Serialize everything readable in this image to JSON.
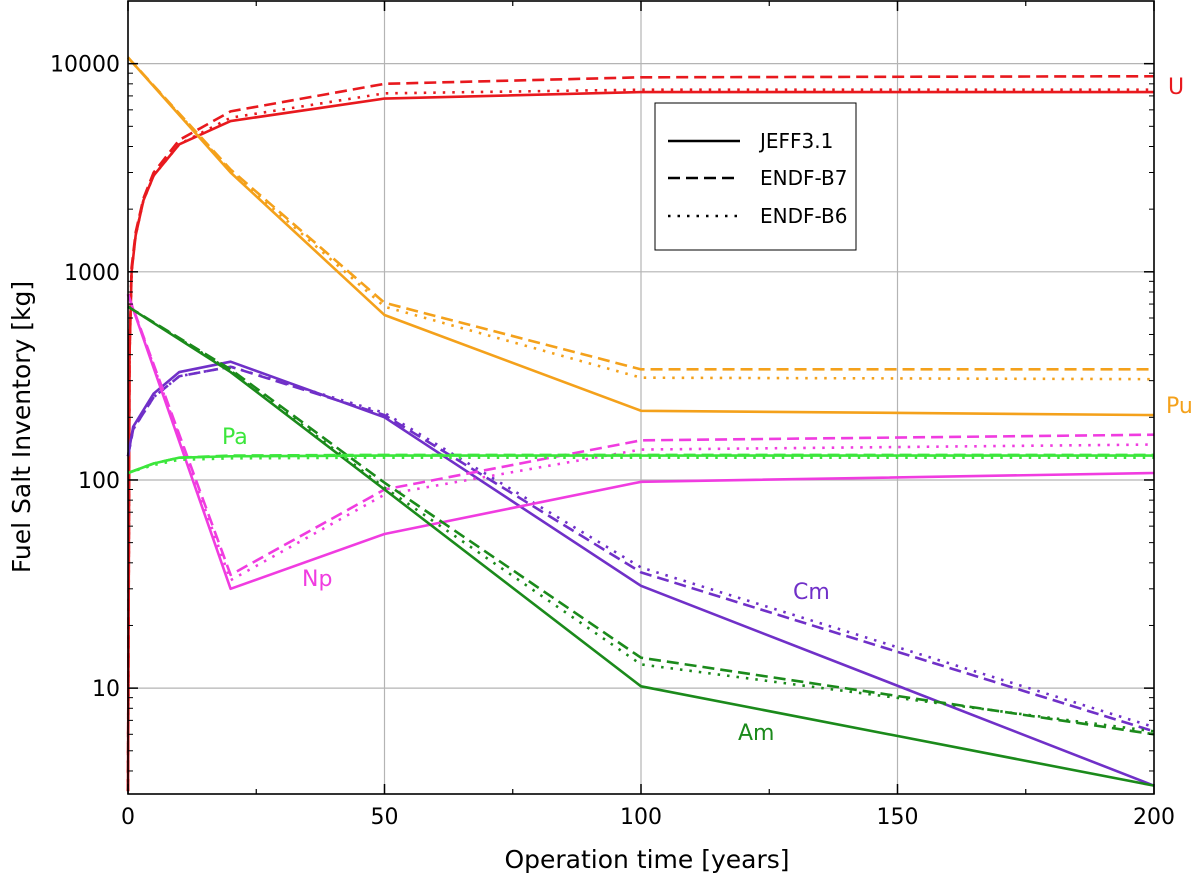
{
  "chart_data": {
    "type": "line",
    "xlabel": "Operation time [years]",
    "ylabel": "Fuel Salt Inventory [kg]",
    "x_ticks": [
      0,
      50,
      100,
      150,
      200
    ],
    "y_ticks": [
      10,
      100,
      1000,
      10000
    ],
    "xlim": [
      0,
      200
    ],
    "ylim_log": [
      3.1,
      20000
    ],
    "yscale": "log",
    "grid": true,
    "legend_position": "upper-center-right",
    "libraries": [
      {
        "name": "JEFF3.1",
        "dash": "solid"
      },
      {
        "name": "ENDF-B7",
        "dash": "dashed"
      },
      {
        "name": "ENDF-B6",
        "dash": "dotted"
      }
    ],
    "series": [
      {
        "element": "U",
        "library": "JEFF3.1",
        "color": "#e8191e",
        "points": [
          [
            0,
            3.2
          ],
          [
            0.3,
            400
          ],
          [
            0.7,
            1000
          ],
          [
            1.5,
            1500
          ],
          [
            3,
            2200
          ],
          [
            5,
            2900
          ],
          [
            10,
            4100
          ],
          [
            20,
            5300
          ],
          [
            50,
            6800
          ],
          [
            100,
            7300
          ],
          [
            200,
            7300
          ]
        ]
      },
      {
        "element": "U",
        "library": "ENDF-B7",
        "color": "#e8191e",
        "points": [
          [
            0,
            3.2
          ],
          [
            0.3,
            420
          ],
          [
            0.7,
            1050
          ],
          [
            1.5,
            1550
          ],
          [
            3,
            2250
          ],
          [
            5,
            3000
          ],
          [
            10,
            4300
          ],
          [
            20,
            5900
          ],
          [
            50,
            8000
          ],
          [
            100,
            8600
          ],
          [
            200,
            8700
          ]
        ]
      },
      {
        "element": "U",
        "library": "ENDF-B6",
        "color": "#e8191e",
        "points": [
          [
            0,
            3.2
          ],
          [
            0.3,
            400
          ],
          [
            0.7,
            1000
          ],
          [
            1.5,
            1500
          ],
          [
            3,
            2200
          ],
          [
            5,
            2900
          ],
          [
            10,
            4100
          ],
          [
            20,
            5500
          ],
          [
            50,
            7200
          ],
          [
            100,
            7500
          ],
          [
            200,
            7500
          ]
        ]
      },
      {
        "element": "Pu",
        "library": "JEFF3.1",
        "color": "#f4a11b",
        "points": [
          [
            0,
            10700
          ],
          [
            20,
            3000
          ],
          [
            50,
            620
          ],
          [
            100,
            215
          ],
          [
            200,
            205
          ]
        ]
      },
      {
        "element": "Pu",
        "library": "ENDF-B7",
        "color": "#f4a11b",
        "points": [
          [
            0,
            10700
          ],
          [
            20,
            3100
          ],
          [
            50,
            710
          ],
          [
            100,
            340
          ],
          [
            200,
            340
          ]
        ]
      },
      {
        "element": "Pu",
        "library": "ENDF-B6",
        "color": "#f4a11b",
        "points": [
          [
            0,
            10700
          ],
          [
            20,
            3050
          ],
          [
            50,
            680
          ],
          [
            100,
            310
          ],
          [
            200,
            305
          ]
        ]
      },
      {
        "element": "Cm",
        "library": "JEFF3.1",
        "color": "#7030c8",
        "points": [
          [
            0,
            130
          ],
          [
            1,
            180
          ],
          [
            5,
            260
          ],
          [
            10,
            330
          ],
          [
            20,
            370
          ],
          [
            50,
            200
          ],
          [
            100,
            31
          ],
          [
            200,
            3.4
          ]
        ]
      },
      {
        "element": "Cm",
        "library": "ENDF-B7",
        "color": "#7030c8",
        "points": [
          [
            0,
            130
          ],
          [
            1,
            175
          ],
          [
            5,
            250
          ],
          [
            10,
            315
          ],
          [
            20,
            350
          ],
          [
            50,
            205
          ],
          [
            100,
            36
          ],
          [
            200,
            6.2
          ]
        ]
      },
      {
        "element": "Cm",
        "library": "ENDF-B6",
        "color": "#7030c8",
        "points": [
          [
            0,
            130
          ],
          [
            1,
            175
          ],
          [
            5,
            250
          ],
          [
            10,
            315
          ],
          [
            20,
            350
          ],
          [
            50,
            210
          ],
          [
            100,
            38
          ],
          [
            200,
            6.5
          ]
        ]
      },
      {
        "element": "Np",
        "library": "JEFF3.1",
        "color": "#f03ce0",
        "points": [
          [
            0,
            780
          ],
          [
            20,
            30
          ],
          [
            50,
            55
          ],
          [
            100,
            98
          ],
          [
            200,
            108
          ]
        ]
      },
      {
        "element": "Np",
        "library": "ENDF-B7",
        "color": "#f03ce0",
        "points": [
          [
            0,
            780
          ],
          [
            20,
            35
          ],
          [
            50,
            90
          ],
          [
            100,
            155
          ],
          [
            200,
            165
          ]
        ]
      },
      {
        "element": "Np",
        "library": "ENDF-B6",
        "color": "#f03ce0",
        "points": [
          [
            0,
            780
          ],
          [
            20,
            33
          ],
          [
            50,
            85
          ],
          [
            100,
            140
          ],
          [
            200,
            148
          ]
        ]
      },
      {
        "element": "Am",
        "library": "JEFF3.1",
        "color": "#1b8a1b",
        "points": [
          [
            0,
            680
          ],
          [
            20,
            330
          ],
          [
            50,
            90
          ],
          [
            100,
            10.2
          ],
          [
            200,
            3.4
          ]
        ]
      },
      {
        "element": "Am",
        "library": "ENDF-B7",
        "color": "#1b8a1b",
        "points": [
          [
            0,
            680
          ],
          [
            20,
            340
          ],
          [
            50,
            97
          ],
          [
            100,
            14
          ],
          [
            200,
            6
          ]
        ]
      },
      {
        "element": "Am",
        "library": "ENDF-B6",
        "color": "#1b8a1b",
        "points": [
          [
            0,
            680
          ],
          [
            20,
            335
          ],
          [
            50,
            92
          ],
          [
            100,
            13
          ],
          [
            200,
            6.2
          ]
        ]
      },
      {
        "element": "Pa",
        "library": "JEFF3.1",
        "color": "#3ce63c",
        "points": [
          [
            0,
            108
          ],
          [
            5,
            120
          ],
          [
            10,
            128
          ],
          [
            20,
            130
          ],
          [
            50,
            131
          ],
          [
            100,
            131
          ],
          [
            200,
            131
          ]
        ]
      },
      {
        "element": "Pa",
        "library": "ENDF-B7",
        "color": "#3ce63c",
        "points": [
          [
            0,
            108
          ],
          [
            5,
            120
          ],
          [
            10,
            128
          ],
          [
            20,
            131
          ],
          [
            50,
            132
          ],
          [
            100,
            132
          ],
          [
            200,
            132
          ]
        ]
      },
      {
        "element": "Pa",
        "library": "ENDF-B6",
        "color": "#3ce63c",
        "points": [
          [
            0,
            108
          ],
          [
            5,
            118
          ],
          [
            10,
            125
          ],
          [
            20,
            127
          ],
          [
            50,
            128
          ],
          [
            100,
            128
          ],
          [
            200,
            128
          ]
        ]
      }
    ],
    "annotations": [
      {
        "text": "U",
        "color": "#e8191e"
      },
      {
        "text": "Pu",
        "color": "#f4a11b"
      },
      {
        "text": "Pa",
        "color": "#3ce63c"
      },
      {
        "text": "Np",
        "color": "#f03ce0"
      },
      {
        "text": "Cm",
        "color": "#7030c8"
      },
      {
        "text": "Am",
        "color": "#1b8a1b"
      }
    ]
  }
}
